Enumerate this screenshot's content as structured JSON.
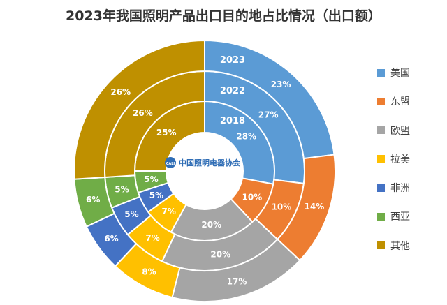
{
  "title": "2023年我国照明产品出口目的地占比情况（出口额）",
  "logo_text": "中国照明电器协会",
  "logo_mark": "CALI",
  "chart_data": {
    "type": "donut",
    "title": "2023年我国照明产品出口目的地占比情况（出口额）",
    "categories": [
      "美国",
      "东盟",
      "欧盟",
      "拉美",
      "非洲",
      "西亚",
      "其他"
    ],
    "colors": [
      "#5b9bd5",
      "#ed7d31",
      "#a5a5a5",
      "#ffc000",
      "#4472c4",
      "#70ad47",
      "#bf9000"
    ],
    "series": [
      {
        "name": "2018",
        "values": [
          28,
          10,
          20,
          7,
          5,
          5,
          25
        ],
        "labels": [
          "28%",
          "10%",
          "20%",
          "7%",
          "5%",
          "5%",
          "25%"
        ]
      },
      {
        "name": "2022",
        "values": [
          27,
          10,
          20,
          7,
          5,
          5,
          26
        ],
        "labels": [
          "27%",
          "10%",
          "20%",
          "7%",
          "5%",
          "5%",
          "26%"
        ]
      },
      {
        "name": "2023",
        "values": [
          23,
          14,
          17,
          8,
          6,
          6,
          26
        ],
        "labels": [
          "23%",
          "14%",
          "17%",
          "8%",
          "6%",
          "6%",
          "26%"
        ]
      }
    ],
    "legend_position": "right"
  }
}
